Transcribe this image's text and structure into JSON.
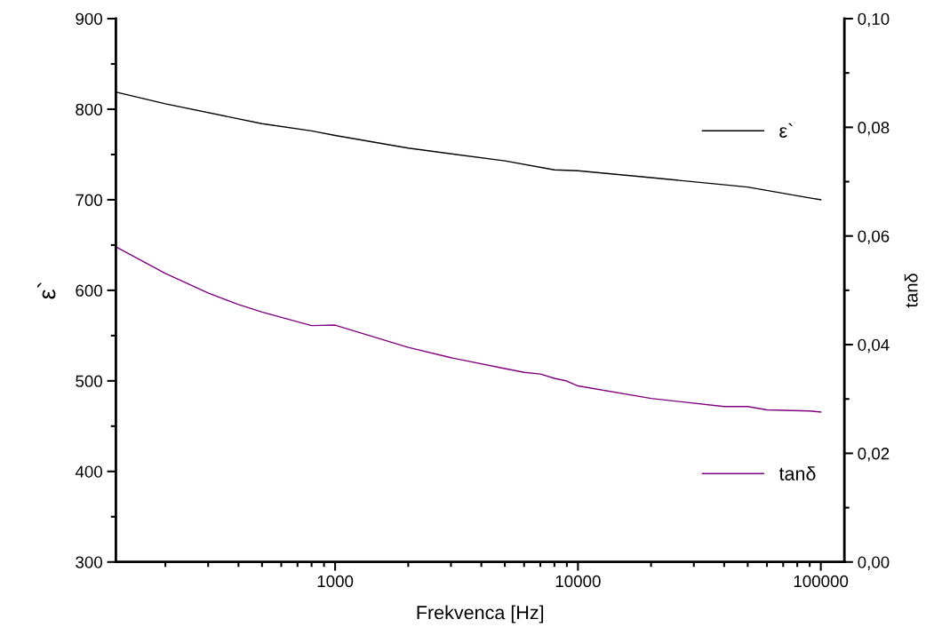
{
  "chart_data": {
    "type": "line",
    "xlabel": "Frekvenca [Hz]",
    "ylabel": "ε`",
    "y2label": "tanδ",
    "log": "x",
    "xlim": [
      125,
      125000
    ],
    "xticks": [
      1000,
      10000,
      100000
    ],
    "ylim": [
      300,
      900
    ],
    "yticks": [
      300,
      400,
      500,
      600,
      700,
      800,
      900
    ],
    "y2lim": [
      0,
      0.1
    ],
    "y2ticks": [
      {
        "value": 0,
        "label": "0,00"
      },
      {
        "value": 0.02,
        "label": "0,02"
      },
      {
        "value": 0.04,
        "label": "0,04"
      },
      {
        "value": 0.06,
        "label": "0,06"
      },
      {
        "value": 0.08,
        "label": "0,08"
      },
      {
        "value": 0.1,
        "label": "0,10"
      }
    ],
    "grid": false,
    "legend": "right",
    "marker": "none",
    "line_style": "solid",
    "series": [
      {
        "name": "ε`",
        "color": "#000000",
        "x": [
          125,
          200,
          500,
          800,
          1000,
          2000,
          5000,
          8000,
          10000,
          20000,
          50000,
          90000,
          100000
        ],
        "values": [
          819,
          806,
          784,
          776,
          771,
          757,
          743,
          733,
          732,
          724.5,
          714,
          702,
          700
        ]
      },
      {
        "name": "tanδ",
        "color": "#800080",
        "axis": "y2",
        "x": [
          125,
          200,
          300,
          400,
          500,
          800,
          1000,
          2000,
          3000,
          5000,
          6000,
          7000,
          8000,
          9000,
          10000,
          20000,
          40000,
          50000,
          60000,
          90000,
          100000
        ],
        "values": [
          0.058,
          0.0531,
          0.0495,
          0.0474,
          0.046,
          0.0435,
          0.0436,
          0.0395,
          0.0376,
          0.0356,
          0.0349,
          0.0346,
          0.0338,
          0.0333,
          0.0324,
          0.0301,
          0.0286,
          0.0286,
          0.028,
          0.0278,
          0.0276
        ]
      }
    ]
  }
}
